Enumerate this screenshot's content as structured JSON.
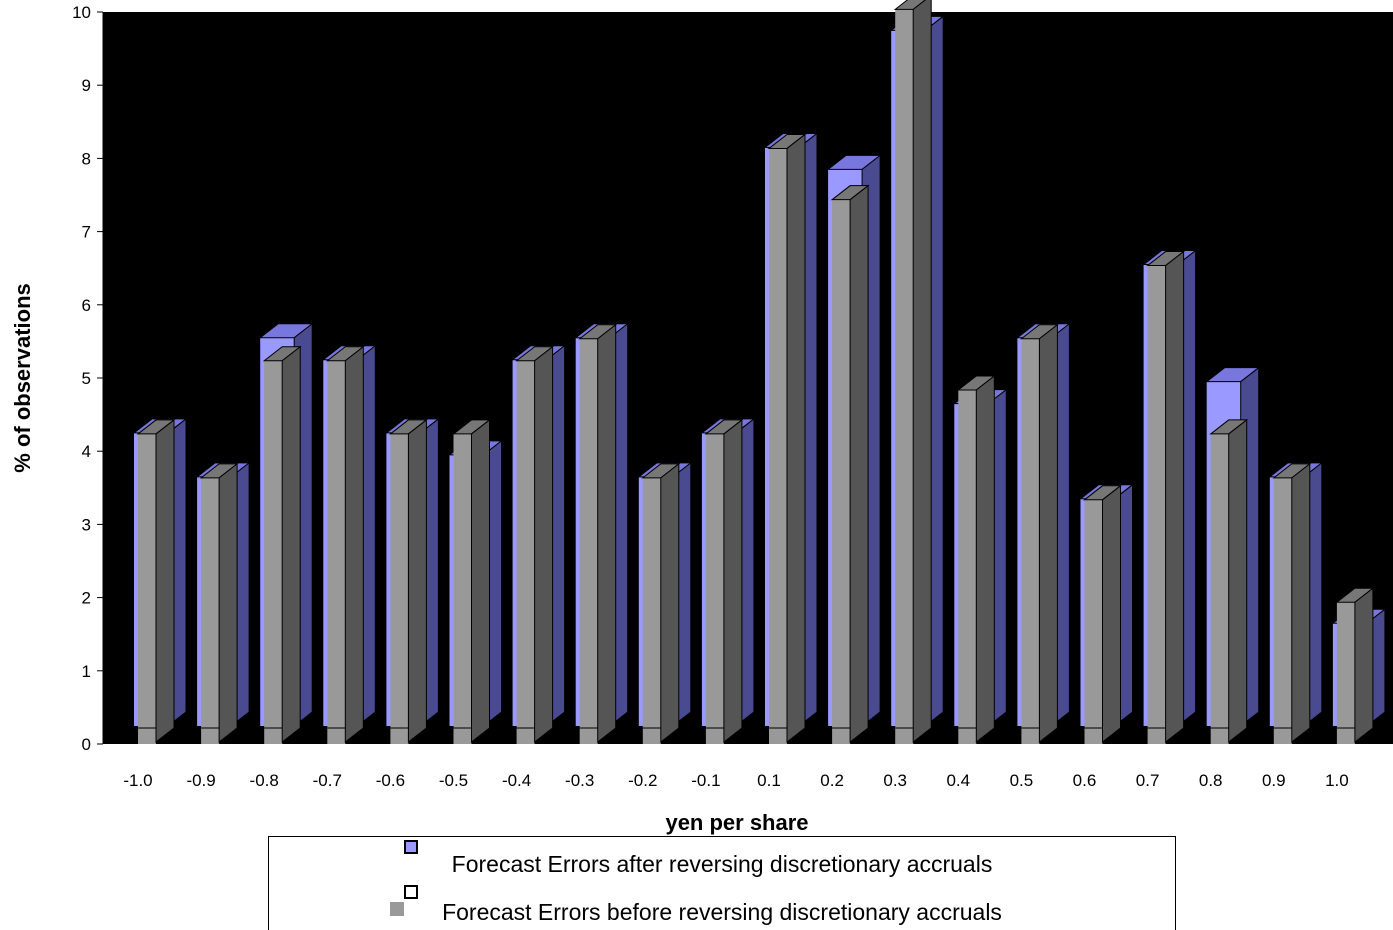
{
  "chart_data": {
    "type": "bar",
    "categories": [
      "-1.0",
      "-0.9",
      "-0.8",
      "-0.7",
      "-0.6",
      "-0.5",
      "-0.4",
      "-0.3",
      "-0.2",
      "-0.1",
      "0.1",
      "0.2",
      "0.3",
      "0.4",
      "0.5",
      "0.6",
      "0.7",
      "0.8",
      "0.9",
      "1.0"
    ],
    "series": [
      {
        "name": "Forecast Errors after reversing discretionary accruals",
        "color": "#9999ff",
        "values": [
          4.4,
          3.8,
          5.7,
          5.4,
          4.4,
          4.1,
          5.4,
          5.7,
          3.8,
          4.4,
          8.3,
          8.0,
          9.9,
          4.8,
          5.7,
          3.5,
          6.7,
          5.1,
          3.8,
          1.8
        ]
      },
      {
        "name": "Forecast Errors before reversing discretionary accruals",
        "color": "#999999",
        "values": [
          4.4,
          3.8,
          5.4,
          5.4,
          4.4,
          4.4,
          5.4,
          5.7,
          3.8,
          4.4,
          8.3,
          7.6,
          10.2,
          5.0,
          5.7,
          3.5,
          6.7,
          4.4,
          3.8,
          2.1
        ]
      }
    ],
    "xlabel": "yen per share",
    "ylabel": "% of observations",
    "ylim": [
      0,
      10
    ],
    "yticks": [
      "0",
      "1",
      "2",
      "3",
      "4",
      "5",
      "6",
      "7",
      "8",
      "9",
      "10"
    ],
    "background": "#000000",
    "legend_position": "bottom"
  },
  "legend": {
    "items": [
      "Forecast Errors after reversing discretionary accruals",
      "Forecast Errors before reversing discretionary accruals"
    ]
  }
}
